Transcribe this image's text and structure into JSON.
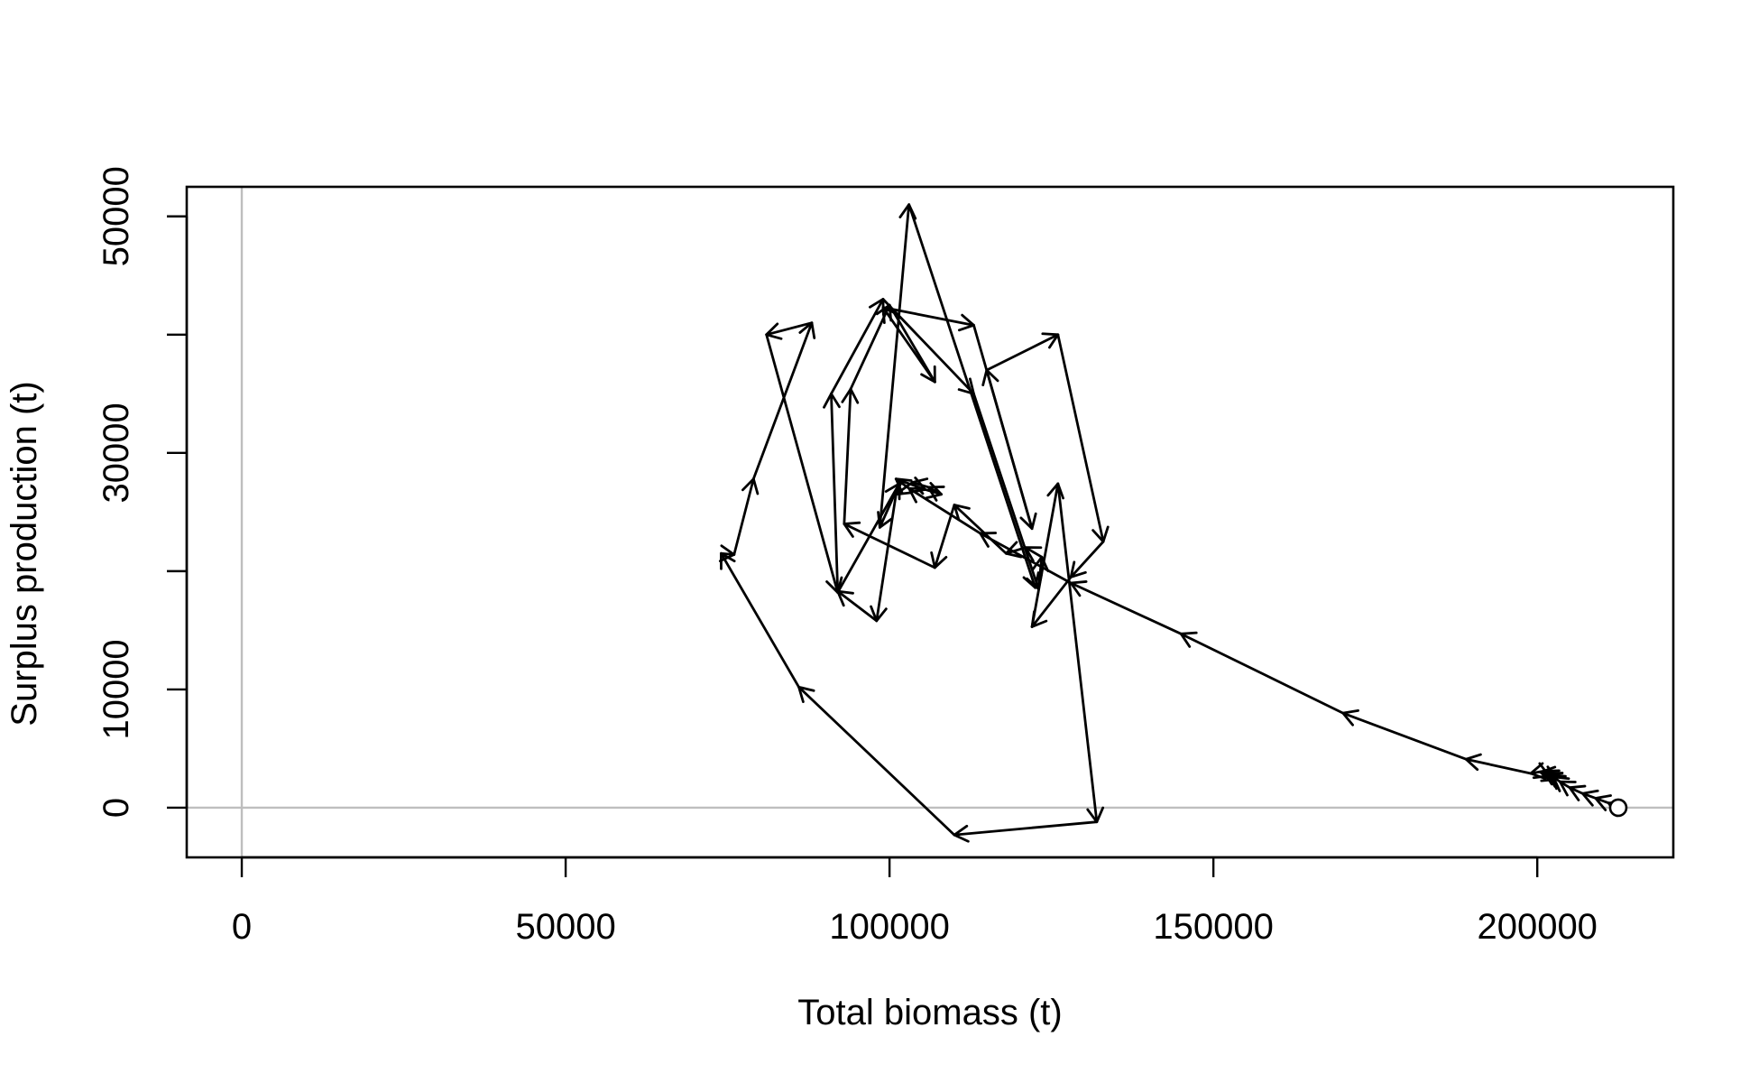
{
  "chart_data": {
    "type": "line",
    "title": "",
    "xlabel": "Total biomass (t)",
    "ylabel": "Surplus production (t)",
    "xlim": [
      -8500,
      221000
    ],
    "ylim": [
      -4200,
      52500
    ],
    "x_ticks": [
      0,
      50000,
      100000,
      150000,
      200000
    ],
    "x_tick_labels": [
      "0",
      "50000",
      "100000",
      "150000",
      "200000"
    ],
    "y_ticks": [
      0,
      10000,
      30000,
      50000
    ],
    "y_tick_labels": [
      "0",
      "10000",
      "30000",
      "50000"
    ],
    "grid": false,
    "reference_lines": {
      "x": 0,
      "y": 0,
      "color": "#bebebe"
    },
    "colors": {
      "trajectory": "#000000",
      "reference": "#bebebe",
      "start_marker_fill": "#ffffff"
    },
    "start_marker": {
      "x": 212500,
      "y": 0
    },
    "series": [
      {
        "values_xy": [
          [
            212500,
            0
          ],
          [
            211000,
            400
          ],
          [
            209000,
            800
          ],
          [
            207000,
            1200
          ],
          [
            205000,
            1700
          ],
          [
            203500,
            2200
          ],
          [
            202500,
            2600
          ],
          [
            201500,
            2900
          ],
          [
            200500,
            3000
          ],
          [
            201800,
            2700
          ],
          [
            203000,
            2400
          ],
          [
            202000,
            2800
          ],
          [
            201000,
            3100
          ],
          [
            199000,
            2900
          ],
          [
            189000,
            4100
          ],
          [
            170000,
            8000
          ],
          [
            145000,
            14700
          ],
          [
            128000,
            19000
          ],
          [
            114000,
            23200
          ],
          [
            103000,
            27000
          ],
          [
            101000,
            27800
          ],
          [
            105500,
            26900
          ],
          [
            108000,
            26500
          ],
          [
            106000,
            27100
          ],
          [
            103500,
            27500
          ],
          [
            101000,
            26500
          ],
          [
            98000,
            15800
          ],
          [
            92000,
            18300
          ],
          [
            91000,
            35000
          ],
          [
            99000,
            43000
          ],
          [
            113000,
            35000
          ],
          [
            123000,
            18500
          ],
          [
            123500,
            21200
          ],
          [
            121000,
            22000
          ],
          [
            118000,
            21500
          ],
          [
            110000,
            25600
          ],
          [
            107000,
            20300
          ],
          [
            93000,
            24000
          ],
          [
            94000,
            35400
          ],
          [
            100000,
            42500
          ],
          [
            107000,
            36000
          ],
          [
            99000,
            42300
          ],
          [
            113000,
            40800
          ],
          [
            122000,
            23600
          ],
          [
            115000,
            37000
          ],
          [
            126000,
            40000
          ],
          [
            133000,
            22500
          ],
          [
            128000,
            19500
          ],
          [
            122000,
            15300
          ],
          [
            126000,
            27400
          ],
          [
            132000,
            -1200
          ],
          [
            110000,
            -2300
          ],
          [
            86000,
            10200
          ],
          [
            74000,
            21500
          ],
          [
            76000,
            21400
          ],
          [
            79000,
            27800
          ],
          [
            88000,
            41000
          ],
          [
            81000,
            40000
          ],
          [
            92000,
            18200
          ],
          [
            101500,
            27400
          ],
          [
            98500,
            23700
          ],
          [
            103000,
            51000
          ],
          [
            122500,
            18600
          ]
        ]
      }
    ]
  }
}
